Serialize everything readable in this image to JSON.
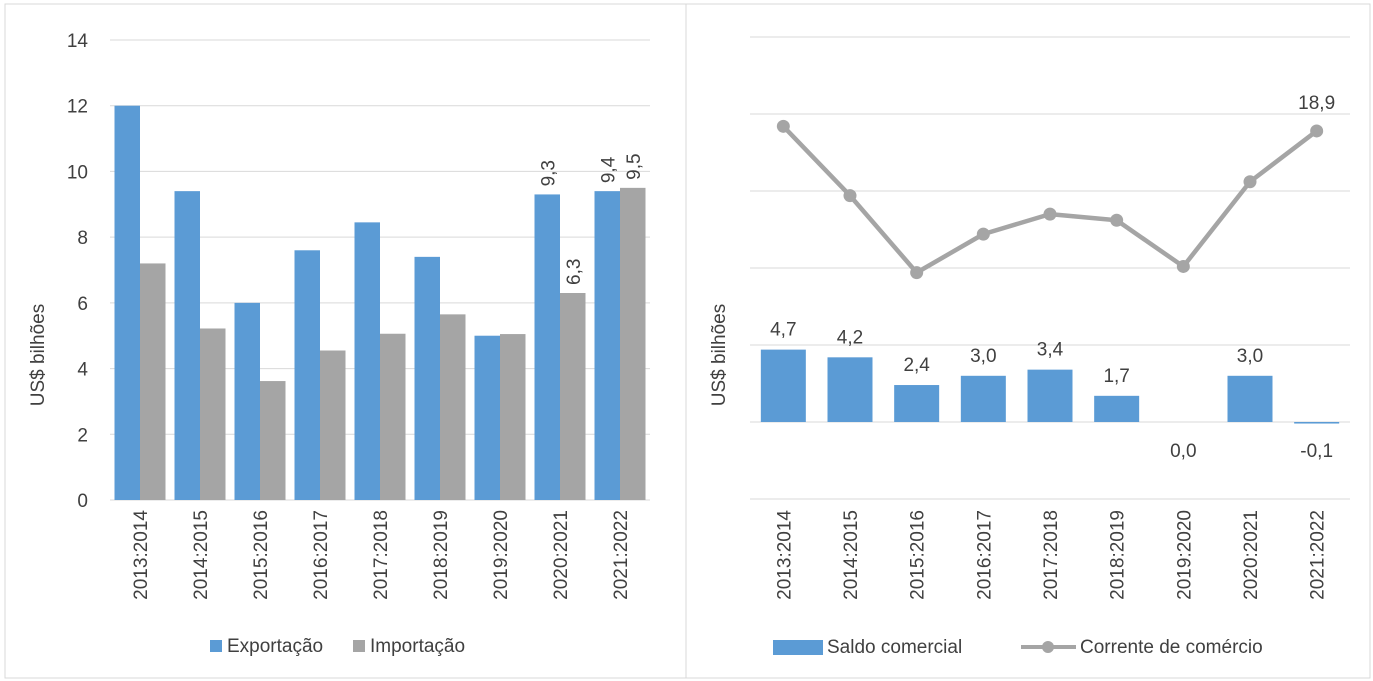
{
  "colors": {
    "export": "#5b9bd5",
    "import": "#a5a5a5",
    "saldo": "#5b9bd5",
    "corrente": "#a5a5a5",
    "grid": "#d9d9d9",
    "text": "#404040"
  },
  "chart_data": [
    {
      "type": "bar",
      "categories": [
        "2013:2014",
        "2014:2015",
        "2015:2016",
        "2016:2017",
        "2017:2018",
        "2018:2019",
        "2019:2020",
        "2020:2021",
        "2021:2022"
      ],
      "series": [
        {
          "name": "Exportação",
          "values": [
            12.0,
            9.4,
            6.0,
            7.6,
            8.45,
            7.4,
            5.0,
            9.3,
            9.4
          ]
        },
        {
          "name": "Importação",
          "values": [
            7.2,
            5.22,
            3.62,
            4.55,
            5.06,
            5.65,
            5.05,
            6.3,
            9.5
          ]
        }
      ],
      "data_labels": [
        {
          "series": 0,
          "index": 7,
          "text": "9,3"
        },
        {
          "series": 1,
          "index": 7,
          "text": "6,3"
        },
        {
          "series": 0,
          "index": 8,
          "text": "9,4"
        },
        {
          "series": 1,
          "index": 8,
          "text": "9,5"
        }
      ],
      "ylabel": "US$ bilhões",
      "ylim": [
        0,
        14
      ],
      "yticks": [
        "0",
        "2",
        "4",
        "6",
        "8",
        "10",
        "12",
        "14"
      ],
      "grid": true,
      "legend_placement": "bottom"
    },
    {
      "type": "bar+line",
      "categories": [
        "2013:2014",
        "2014:2015",
        "2015:2016",
        "2016:2017",
        "2017:2018",
        "2018:2019",
        "2019:2020",
        "2020:2021",
        "2021:2022"
      ],
      "series": [
        {
          "name": "Saldo comercial",
          "type": "bar",
          "values": [
            4.7,
            4.2,
            2.4,
            3.0,
            3.4,
            1.7,
            0.0,
            3.0,
            -0.1
          ],
          "labels": [
            "4,7",
            "4,2",
            "2,4",
            "3,0",
            "3,4",
            "1,7",
            "0,0",
            "3,0",
            "-0,1"
          ]
        },
        {
          "name": "Corrente de comércio",
          "type": "line",
          "values": [
            19.2,
            14.7,
            9.7,
            12.2,
            13.5,
            13.1,
            10.1,
            15.6,
            18.9
          ],
          "labels": [
            "",
            "",
            "",
            "",
            "",
            "",
            "",
            "",
            "18,9"
          ]
        }
      ],
      "ylabel": "US$ bilhões",
      "grid": true,
      "legend_placement": "bottom"
    }
  ]
}
